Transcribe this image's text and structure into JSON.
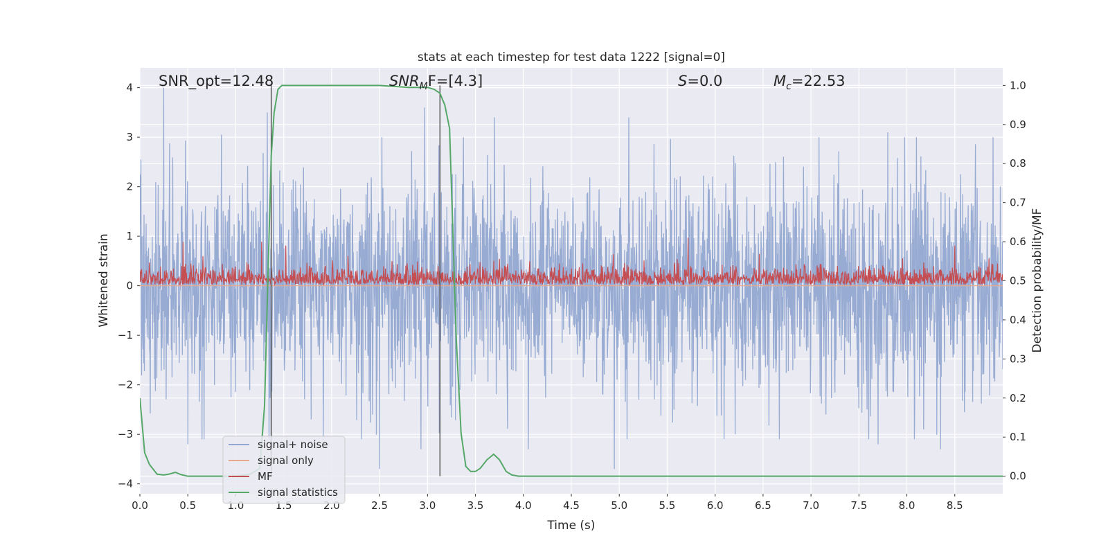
{
  "chart_data": {
    "type": "line",
    "title": "stats at each timestep for test data 1222 [signal=0]",
    "xlabel": "Time (s)",
    "ylabel": "Whitened strain",
    "y2label": "Detection probability/MF",
    "xlim": [
      0.0,
      9.0
    ],
    "ylim": [
      -4.2,
      4.4
    ],
    "y2lim": [
      -0.045,
      1.045
    ],
    "xticks": [
      "0.0",
      "0.5",
      "1.0",
      "1.5",
      "2.0",
      "2.5",
      "3.0",
      "3.5",
      "4.0",
      "4.5",
      "5.0",
      "5.5",
      "6.0",
      "6.5",
      "7.0",
      "7.5",
      "8.0",
      "8.5"
    ],
    "yticks": [
      "4",
      "3",
      "2",
      "1",
      "0",
      "−1",
      "−2",
      "−3",
      "−4"
    ],
    "y2ticks": [
      "1.0",
      "0.9",
      "0.8",
      "0.7",
      "0.6",
      "0.5",
      "0.4",
      "0.3",
      "0.2",
      "0.1",
      "0.0"
    ],
    "grid": true,
    "legend_placement": "lower-left",
    "annotations": {
      "snr_opt": "SNR_opt=12.48",
      "snr_mf_base": "SNR",
      "snr_mf_sub": "M",
      "snr_mf_rest": "F=[4.3]",
      "s_label": "S",
      "s_value": "=0.0",
      "mc_base": "M",
      "mc_sub": "c",
      "mc_value": "=22.53"
    },
    "vertical_lines_x": [
      1.37,
      3.13
    ],
    "series": [
      {
        "name": "signal+ noise",
        "color": "#92a8d1",
        "axis": "left",
        "style": "noise",
        "amplitude_typical": 1.6,
        "peaks": [
          [
            0.25,
            4.0
          ],
          [
            1.33,
            3.5
          ],
          [
            1.37,
            3.6
          ],
          [
            2.97,
            3.6
          ],
          [
            3.7,
            3.4
          ],
          [
            0.85,
            3.05
          ],
          [
            5.1,
            3.4
          ],
          [
            7.8,
            3.1
          ],
          [
            8.1,
            3.0
          ],
          [
            0.5,
            -3.2
          ],
          [
            2.5,
            -3.7
          ],
          [
            2.93,
            -3.3
          ],
          [
            4.05,
            -3.3
          ],
          [
            4.95,
            -3.7
          ],
          [
            7.7,
            -3.2
          ],
          [
            8.35,
            -3.3
          ],
          [
            1.37,
            -3.7
          ]
        ]
      },
      {
        "name": "signal only",
        "color": "#e8a98c",
        "axis": "left",
        "values_x": [
          0.0,
          9.0
        ],
        "values_y": [
          0.0,
          0.0
        ]
      },
      {
        "name": "MF",
        "color": "#c44e52",
        "axis": "right",
        "style": "band",
        "band_min": 0.49,
        "band_typical_max": 0.54,
        "peaks": [
          [
            0.45,
            0.6
          ],
          [
            1.27,
            0.6
          ],
          [
            1.52,
            0.59
          ],
          [
            5.72,
            0.61
          ],
          [
            8.5,
            0.59
          ]
        ]
      },
      {
        "name": "signal statistics",
        "color": "#55a868",
        "axis": "right",
        "values_x": [
          0.0,
          0.05,
          0.1,
          0.18,
          0.25,
          0.3,
          0.37,
          0.43,
          0.5,
          0.6,
          0.8,
          1.0,
          1.15,
          1.25,
          1.3,
          1.34,
          1.37,
          1.4,
          1.44,
          1.48,
          1.6,
          2.0,
          2.5,
          2.8,
          3.0,
          3.07,
          3.13,
          3.18,
          3.23,
          3.3,
          3.35,
          3.4,
          3.45,
          3.5,
          3.55,
          3.62,
          3.69,
          3.75,
          3.82,
          3.88,
          3.95,
          4.2,
          5.0,
          6.0,
          7.0,
          8.0,
          9.0
        ],
        "values_y": [
          0.2,
          0.06,
          0.03,
          0.005,
          0.003,
          0.005,
          0.01,
          0.004,
          0.0,
          0.0,
          0.0,
          0.0,
          0.005,
          0.02,
          0.18,
          0.55,
          0.82,
          0.93,
          0.99,
          1.0,
          1.0,
          1.0,
          1.0,
          0.995,
          0.995,
          0.99,
          0.98,
          0.95,
          0.89,
          0.35,
          0.11,
          0.025,
          0.012,
          0.012,
          0.02,
          0.042,
          0.056,
          0.042,
          0.012,
          0.003,
          0.0,
          0.0,
          0.0,
          0.0,
          0.0,
          0.0,
          0.0
        ]
      }
    ]
  }
}
